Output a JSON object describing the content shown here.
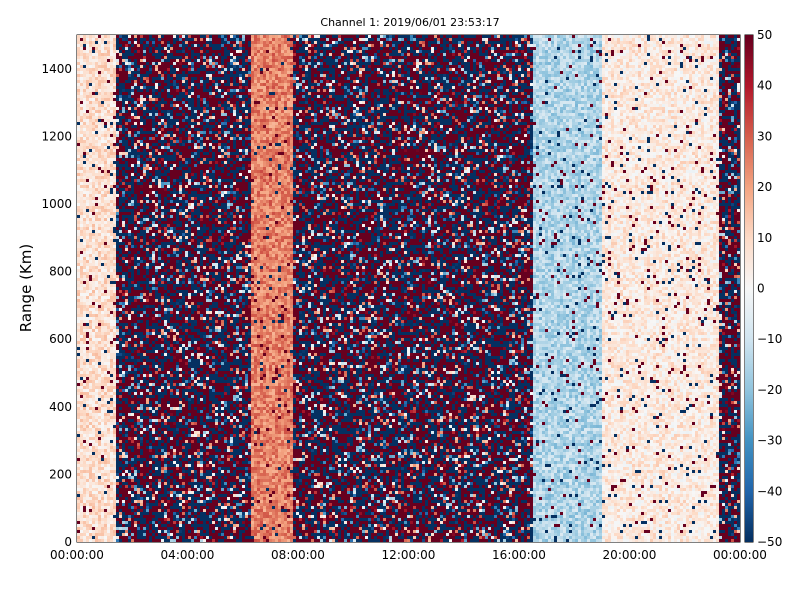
{
  "chart_data": {
    "type": "heatmap",
    "title": "Channel 1: 2019/06/01 23:53:17",
    "xlabel": "",
    "ylabel": "Range (Km)",
    "x_ticks": [
      "00:00:00",
      "04:00:00",
      "08:00:00",
      "12:00:00",
      "16:00:00",
      "20:00:00",
      "00:00:00"
    ],
    "x_range_hours": [
      0,
      24
    ],
    "y_ticks": [
      0,
      200,
      400,
      600,
      800,
      1000,
      1200,
      1400
    ],
    "ylim": [
      0,
      1500
    ],
    "colorbar": {
      "colormap": "RdBu_r",
      "range": [
        -50,
        50
      ],
      "ticks": [
        50,
        40,
        30,
        20,
        10,
        0,
        -10,
        -20,
        -30,
        -40,
        -50
      ]
    },
    "grid": false,
    "regions": [
      {
        "from_hour": 0.0,
        "to_hour": 1.4,
        "description": "light pink / pale values",
        "level": 8
      },
      {
        "from_hour": 1.4,
        "to_hour": 6.3,
        "description": "random noise",
        "level": null
      },
      {
        "from_hour": 6.3,
        "to_hour": 7.8,
        "description": "warm salmon band",
        "level": 25
      },
      {
        "from_hour": 7.8,
        "to_hour": 16.5,
        "description": "random noise",
        "level": null
      },
      {
        "from_hour": 16.5,
        "to_hour": 19.0,
        "description": "light blue band",
        "level": -15
      },
      {
        "from_hour": 19.0,
        "to_hour": 23.2,
        "description": "pale pink / white mix",
        "level": 5
      },
      {
        "from_hour": 23.2,
        "to_hour": 24.0,
        "description": "random noise",
        "level": null
      }
    ],
    "colors": {
      "high": "#67001f",
      "low": "#053061",
      "mid": "#f7f7f7"
    }
  }
}
